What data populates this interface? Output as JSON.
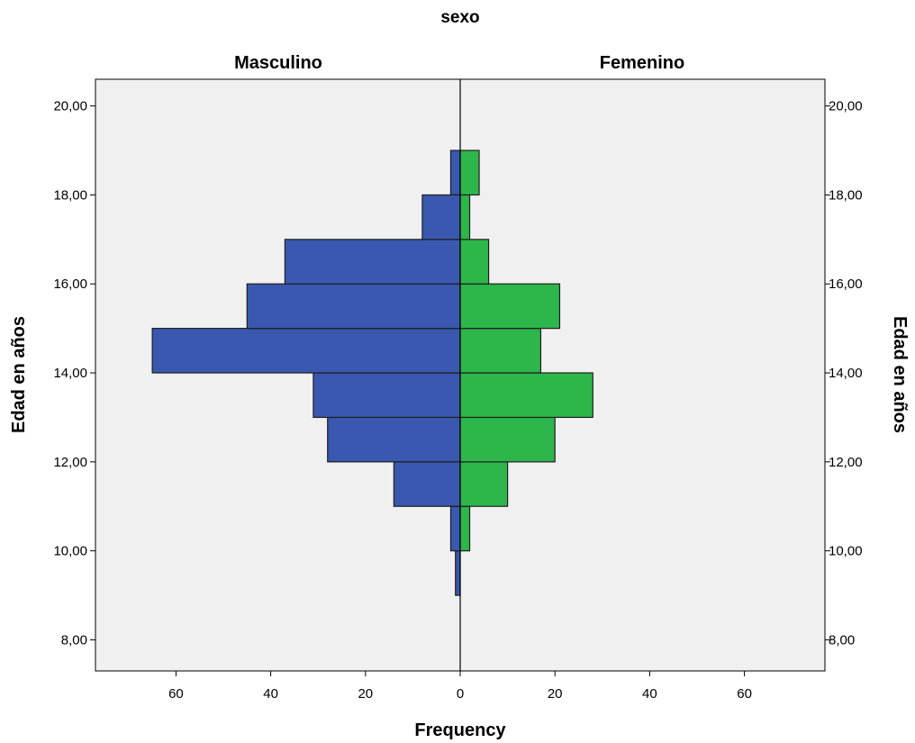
{
  "chart_data": {
    "type": "bar",
    "orientation": "population-pyramid",
    "title": "sexo",
    "xlabel": "Frequency",
    "ylabel": "Edad en años",
    "ylabel_right": "Edad en años",
    "xlim": [
      -77,
      77
    ],
    "ylim": [
      7.3,
      20.6
    ],
    "bin_width": 1,
    "x_ticks": [
      60,
      40,
      20,
      0,
      20,
      40,
      60
    ],
    "x_tick_values": [
      -60,
      -40,
      -20,
      0,
      20,
      40,
      60
    ],
    "y_ticks": [
      "8,00",
      "10,00",
      "12,00",
      "14,00",
      "16,00",
      "18,00",
      "20,00"
    ],
    "y_tick_values": [
      8,
      10,
      12,
      14,
      16,
      18,
      20
    ],
    "grid": false,
    "bin_lows": [
      9,
      10,
      11,
      12,
      13,
      14,
      15,
      16,
      17,
      18
    ],
    "series": [
      {
        "name": "Masculino",
        "side": "left",
        "color": "#3a58af",
        "values": [
          1,
          2,
          14,
          28,
          31,
          65,
          45,
          37,
          8,
          2
        ]
      },
      {
        "name": "Femenino",
        "side": "right",
        "color": "#2db64a",
        "values": [
          0,
          2,
          10,
          20,
          28,
          17,
          21,
          6,
          2,
          4
        ]
      }
    ],
    "colors": {
      "plot_background": "#f0f0f0",
      "bar_stroke": "#1e1e1e"
    }
  }
}
